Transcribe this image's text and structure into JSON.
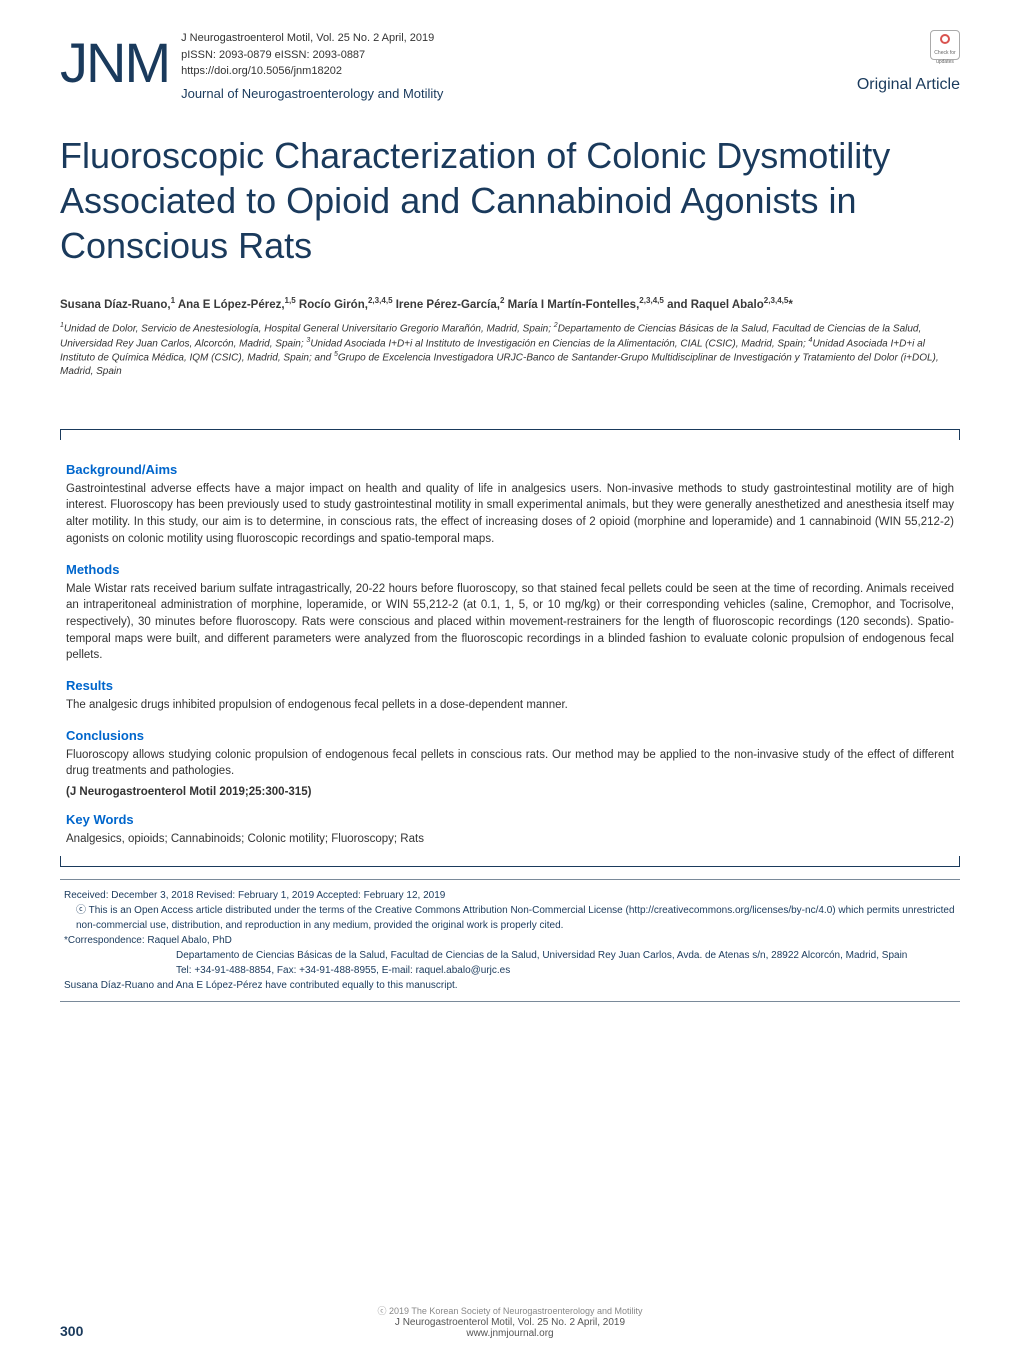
{
  "header": {
    "logo": "JNM",
    "ref_line": "J Neurogastroenterol Motil, Vol. 25 No. 2 April, 2019",
    "pissn": "pISSN: 2093-0879  eISSN: 2093-0887",
    "doi": "https://doi.org/10.5056/jnm18202",
    "journal_name": "Journal of Neurogastroenterology and Motility",
    "check_label": "Check for updates",
    "article_type": "Original Article"
  },
  "title": "Fluoroscopic Characterization of Colonic Dysmotility Associated to Opioid and Cannabinoid Agonists in Conscious Rats",
  "authors_html": "Susana Díaz-Ruano,<sup>1</sup> Ana E López-Pérez,<sup>1,5</sup> Rocío Girón,<sup>2,3,4,5</sup> Irene Pérez-García,<sup>2</sup> María I Martín-Fontelles,<sup>2,3,4,5</sup> and Raquel Abalo<sup>2,3,4,5</sup>*",
  "affiliations_html": "<sup>1</sup>Unidad de Dolor, Servicio de Anestesiología, Hospital General Universitario Gregorio Marañón, Madrid, Spain; <sup>2</sup>Departamento de Ciencias Básicas de la Salud, Facultad de Ciencias de la Salud, Universidad Rey Juan Carlos, Alcorcón, Madrid, Spain; <sup>3</sup>Unidad Asociada I+D+i al Instituto de Investigación en Ciencias de la Alimentación, CIAL (CSIC), Madrid, Spain; <sup>4</sup>Unidad Asociada I+D+i al Instituto de Química Médica, IQM (CSIC), Madrid, Spain; and <sup>5</sup>Grupo de Excelencia Investigadora URJC-Banco de Santander-Grupo Multidisciplinar de Investigación y Tratamiento del Dolor (i+DOL), Madrid, Spain",
  "abstract": {
    "background_h": "Background/Aims",
    "background": "Gastrointestinal adverse effects have a major impact on health and quality of life in analgesics users. Non-invasive methods to study gastrointestinal motility are of high interest. Fluoroscopy has been previously used to study gastrointestinal motility in small experimental animals, but they were generally anesthetized and anesthesia itself may alter motility. In this study, our aim is to determine, in conscious rats, the effect of increasing doses of 2 opioid (morphine and loperamide) and 1 cannabinoid (WIN 55,212-2) agonists on colonic motility using fluoroscopic recordings and spatio-temporal maps.",
    "methods_h": "Methods",
    "methods": "Male Wistar rats received barium sulfate intragastrically, 20-22 hours before fluoroscopy, so that stained fecal pellets could be seen at the time of recording. Animals received an intraperitoneal administration of morphine, loperamide, or WIN 55,212-2 (at 0.1, 1, 5, or 10 mg/kg) or their corresponding vehicles (saline, Cremophor, and Tocrisolve, respectively), 30 minutes before fluoroscopy. Rats were conscious and placed within movement-restrainers for the length of fluoroscopic recordings (120 seconds). Spatio-temporal maps were built, and different parameters were analyzed from the fluoroscopic recordings in a blinded fashion to evaluate colonic propulsion of endogenous fecal pellets.",
    "results_h": "Results",
    "results": "The analgesic drugs inhibited propulsion of endogenous fecal pellets in a dose-dependent manner.",
    "conclusions_h": "Conclusions",
    "conclusions": "Fluoroscopy allows studying colonic propulsion of endogenous fecal pellets in conscious rats. Our method may be applied to the non-invasive study of the effect of different drug treatments and pathologies.",
    "citation": "(J Neurogastroenterol Motil 2019;25:300-315)",
    "keywords_h": "Key Words",
    "keywords": "Analgesics, opioids; Cannabinoids; Colonic motility; Fluoroscopy; Rats"
  },
  "footer": {
    "received": "Received: December 3, 2018    Revised: February 1, 2019    Accepted: February 12, 2019",
    "license": "ⓒ This is an Open Access article distributed under the terms of the Creative Commons Attribution Non-Commercial License (http://creativecommons.org/licenses/by-nc/4.0) which permits unrestricted non-commercial use, distribution, and reproduction in any medium, provided the original work is properly cited.",
    "corr_label": "*Correspondence: Raquel Abalo, PhD",
    "corr_addr": "Departamento de Ciencias Básicas de la Salud, Facultad de Ciencias de la Salud, Universidad Rey Juan Carlos, Avda. de Atenas s/n, 28922 Alcorcón, Madrid, Spain",
    "corr_tel": "Tel: +34-91-488-8854, Fax: +34-91-488-8955, E-mail: raquel.abalo@urjc.es",
    "contrib": "Susana Díaz-Ruano and Ana E López-Pérez have contributed equally to this manuscript."
  },
  "bottom": {
    "copyright": "ⓒ 2019 The Korean Society of Neurogastroenterology and Motility",
    "ref": "J Neurogastroenterol Motil, Vol. 25  No. 2  April, 2019",
    "url": "www.jnmjournal.org",
    "page": "300"
  },
  "colors": {
    "brand": "#1a3a5c",
    "heading_blue": "#0066cc",
    "body_text": "#333333",
    "footer_text": "#1a3a5c",
    "rule": "#7a8a9a"
  },
  "typography": {
    "logo_fontsize": 56,
    "title_fontsize": 36,
    "authors_fontsize": 11.5,
    "affil_fontsize": 10,
    "heading_fontsize": 13,
    "body_fontsize": 11.5,
    "footer_fontsize": 10
  }
}
